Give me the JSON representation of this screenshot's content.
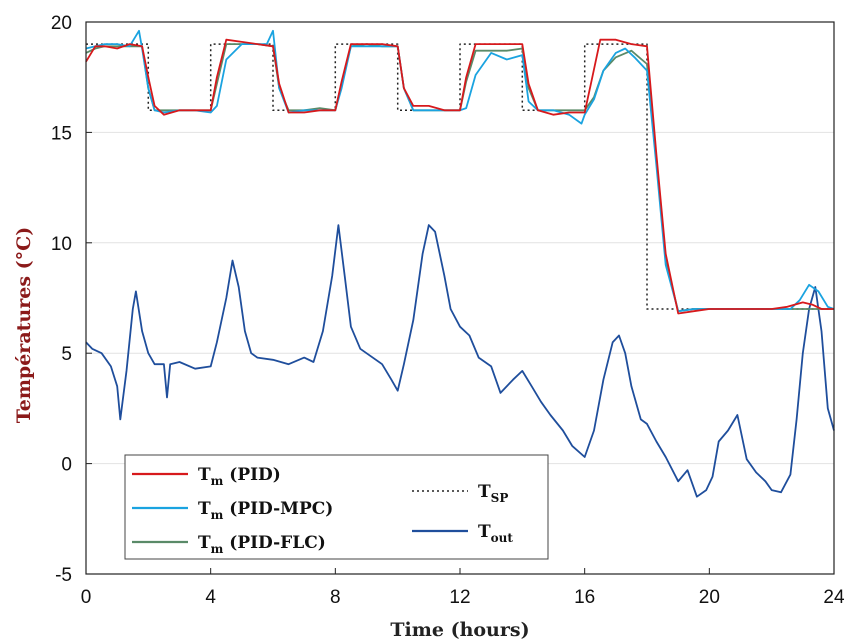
{
  "chart_data": {
    "type": "line",
    "xlabel": "Time (hours)",
    "ylabel": "Températures (°C)",
    "xlim": [
      0,
      24
    ],
    "ylim": [
      -5,
      20
    ],
    "xticks": [
      "0",
      "4",
      "8",
      "12",
      "16",
      "20",
      "24"
    ],
    "yticks": [
      "-5",
      "0",
      "5",
      "10",
      "15",
      "20"
    ],
    "grid": "horizontal",
    "legend_placement": "bottom-left",
    "series": [
      {
        "name": "Tm (PID)",
        "legend_main": "T",
        "legend_sub": "m",
        "legend_rest": " (PID)",
        "color": "#d7191c",
        "style": "solid",
        "x": [
          0,
          0.3,
          0.6,
          1.0,
          1.4,
          1.8,
          2.0,
          2.2,
          2.5,
          3.0,
          3.5,
          4.0,
          4.2,
          4.5,
          5.0,
          5.5,
          6.0,
          6.2,
          6.5,
          7.0,
          7.5,
          8.0,
          8.2,
          8.5,
          9.0,
          9.5,
          10.0,
          10.2,
          10.5,
          11.0,
          11.5,
          12.0,
          12.2,
          12.5,
          13.0,
          13.5,
          14.0,
          14.2,
          14.5,
          15.0,
          15.5,
          16.0,
          16.2,
          16.5,
          17.0,
          17.5,
          18.0,
          18.3,
          18.6,
          19.0,
          19.5,
          20,
          21,
          22,
          22.5,
          23,
          23.3,
          23.6,
          24
        ],
        "y": [
          18.2,
          18.9,
          18.9,
          18.8,
          19.0,
          18.9,
          17.5,
          16.2,
          15.8,
          16.0,
          16.0,
          16.0,
          17.5,
          19.2,
          19.1,
          19.0,
          18.9,
          17.2,
          15.9,
          15.9,
          16.0,
          16.0,
          17.3,
          19.0,
          19.0,
          19.0,
          18.9,
          17.0,
          16.2,
          16.2,
          16.0,
          16.0,
          17.5,
          19.0,
          19.0,
          19.0,
          19.0,
          17.2,
          16.0,
          15.8,
          15.9,
          15.9,
          17.2,
          19.2,
          19.2,
          19.0,
          18.9,
          14.0,
          9.5,
          6.8,
          6.9,
          7.0,
          7.0,
          7.0,
          7.1,
          7.3,
          7.2,
          7.0,
          7.0
        ]
      },
      {
        "name": "Tm (PID-MPC)",
        "legend_main": "T",
        "legend_sub": "m",
        "legend_rest": " (PID-MPC)",
        "color": "#1aa3e0",
        "style": "solid",
        "x": [
          0,
          0.3,
          0.6,
          1.0,
          1.4,
          1.7,
          1.8,
          2.0,
          2.2,
          2.5,
          3.0,
          3.5,
          4.0,
          4.2,
          4.5,
          5.0,
          5.5,
          5.8,
          6.0,
          6.2,
          6.5,
          7.0,
          7.5,
          8.0,
          8.2,
          8.5,
          9.0,
          9.5,
          10.0,
          10.2,
          10.5,
          11.0,
          11.5,
          12.0,
          12.2,
          12.5,
          13.0,
          13.5,
          14.0,
          14.2,
          14.5,
          15.0,
          15.5,
          15.9,
          16.0,
          16.3,
          16.6,
          17.0,
          17.3,
          17.6,
          18.0,
          18.3,
          18.6,
          19.0,
          19.5,
          20,
          21,
          22,
          22.6,
          22.9,
          23.2,
          23.5,
          23.8,
          24
        ],
        "y": [
          18.8,
          18.9,
          19.0,
          19.0,
          18.9,
          19.6,
          18.8,
          17.0,
          16.0,
          15.9,
          16.0,
          16.0,
          15.9,
          16.2,
          18.3,
          19.0,
          19.0,
          19.0,
          19.6,
          17.0,
          15.9,
          16.0,
          16.0,
          16.0,
          17.0,
          18.9,
          18.9,
          18.9,
          18.9,
          17.0,
          16.0,
          16.0,
          16.0,
          16.0,
          16.1,
          17.6,
          18.6,
          18.3,
          18.5,
          16.4,
          16.0,
          16.0,
          15.8,
          15.4,
          15.8,
          16.5,
          17.8,
          18.6,
          18.8,
          18.4,
          17.8,
          13.5,
          9.0,
          6.9,
          7.0,
          7.0,
          7.0,
          7.0,
          7.0,
          7.4,
          8.1,
          7.8,
          7.1,
          7.0
        ]
      },
      {
        "name": "Tm (PID-FLC)",
        "legend_main": "T",
        "legend_sub": "m",
        "legend_rest": " (PID-FLC)",
        "color": "#5a8a68",
        "style": "solid",
        "x": [
          0,
          0.3,
          0.6,
          1.0,
          1.4,
          1.8,
          2.0,
          2.2,
          2.5,
          3.0,
          3.5,
          4.0,
          4.2,
          4.5,
          5.0,
          5.5,
          6.0,
          6.2,
          6.5,
          7.0,
          7.5,
          8.0,
          8.2,
          8.5,
          9.0,
          9.5,
          10.0,
          10.2,
          10.5,
          11.0,
          11.5,
          12.0,
          12.2,
          12.5,
          13.0,
          13.5,
          14.0,
          14.2,
          14.5,
          15.0,
          15.5,
          16.0,
          16.3,
          16.6,
          17.0,
          17.5,
          18.0,
          18.3,
          18.6,
          19.0,
          19.5,
          20,
          21,
          22,
          22.5,
          23,
          23.5,
          24
        ],
        "y": [
          18.6,
          18.8,
          18.9,
          18.9,
          18.9,
          18.9,
          17.0,
          16.0,
          16.0,
          16.0,
          16.0,
          16.0,
          17.2,
          19.0,
          19.0,
          19.0,
          18.9,
          17.0,
          16.0,
          16.0,
          16.1,
          16.0,
          17.2,
          18.9,
          19.0,
          18.9,
          18.9,
          17.0,
          16.0,
          16.0,
          16.0,
          16.0,
          17.3,
          18.7,
          18.7,
          18.7,
          18.8,
          17.0,
          16.0,
          16.0,
          16.0,
          16.0,
          16.6,
          17.8,
          18.4,
          18.7,
          18.1,
          13.8,
          9.2,
          6.9,
          7.0,
          7.0,
          7.0,
          7.0,
          7.0,
          7.0,
          7.0,
          7.0
        ]
      },
      {
        "name": "TSP",
        "legend_main": "T",
        "legend_sub": "SP",
        "legend_rest": "",
        "color": "#222222",
        "style": "dotted",
        "x": [
          0,
          2,
          2,
          4,
          4,
          6,
          6,
          8,
          8,
          10,
          10,
          12,
          12,
          14,
          14,
          16,
          16,
          18,
          18,
          24
        ],
        "y": [
          19,
          19,
          16,
          16,
          19,
          19,
          16,
          16,
          19,
          19,
          16,
          16,
          19,
          19,
          16,
          16,
          19,
          19,
          7,
          7
        ]
      },
      {
        "name": "Tout",
        "legend_main": "T",
        "legend_sub": "out",
        "legend_rest": "",
        "color": "#1f4e9c",
        "style": "solid",
        "x": [
          0,
          0.2,
          0.5,
          0.8,
          1.0,
          1.1,
          1.3,
          1.5,
          1.6,
          1.8,
          2.0,
          2.2,
          2.5,
          2.6,
          2.7,
          3.0,
          3.5,
          4.0,
          4.2,
          4.5,
          4.7,
          4.9,
          5.1,
          5.3,
          5.5,
          6.0,
          6.5,
          7.0,
          7.3,
          7.6,
          7.9,
          8.1,
          8.3,
          8.5,
          8.8,
          9.0,
          9.5,
          9.8,
          10.0,
          10.2,
          10.5,
          10.8,
          11.0,
          11.2,
          11.5,
          11.7,
          12.0,
          12.3,
          12.6,
          13.0,
          13.3,
          13.7,
          14.0,
          14.3,
          14.6,
          14.9,
          15.3,
          15.6,
          16.0,
          16.3,
          16.6,
          16.9,
          17.1,
          17.3,
          17.5,
          17.8,
          18.0,
          18.3,
          18.6,
          19.0,
          19.3,
          19.6,
          19.9,
          20.1,
          20.3,
          20.6,
          20.9,
          21.2,
          21.5,
          21.8,
          22.0,
          22.3,
          22.6,
          22.8,
          23.0,
          23.2,
          23.4,
          23.6,
          23.8,
          24.0
        ],
        "y": [
          5.5,
          5.2,
          5.0,
          4.4,
          3.5,
          2.0,
          4.2,
          7.0,
          7.8,
          6.0,
          5.0,
          4.5,
          4.5,
          3.0,
          4.5,
          4.6,
          4.3,
          4.4,
          5.5,
          7.5,
          9.2,
          8.0,
          6.0,
          5.0,
          4.8,
          4.7,
          4.5,
          4.8,
          4.6,
          6.0,
          8.5,
          10.8,
          8.5,
          6.2,
          5.2,
          5.0,
          4.5,
          3.8,
          3.3,
          4.5,
          6.5,
          9.5,
          10.8,
          10.5,
          8.5,
          7.0,
          6.2,
          5.8,
          4.8,
          4.4,
          3.2,
          3.8,
          4.2,
          3.5,
          2.8,
          2.2,
          1.5,
          0.8,
          0.3,
          1.5,
          3.8,
          5.5,
          5.8,
          5.0,
          3.5,
          2.0,
          1.8,
          1.0,
          0.3,
          -0.8,
          -0.3,
          -1.5,
          -1.2,
          -0.6,
          1.0,
          1.5,
          2.2,
          0.2,
          -0.4,
          -0.8,
          -1.2,
          -1.3,
          -0.5,
          2.0,
          5.0,
          7.0,
          8.0,
          6.0,
          2.5,
          1.5
        ]
      }
    ]
  }
}
